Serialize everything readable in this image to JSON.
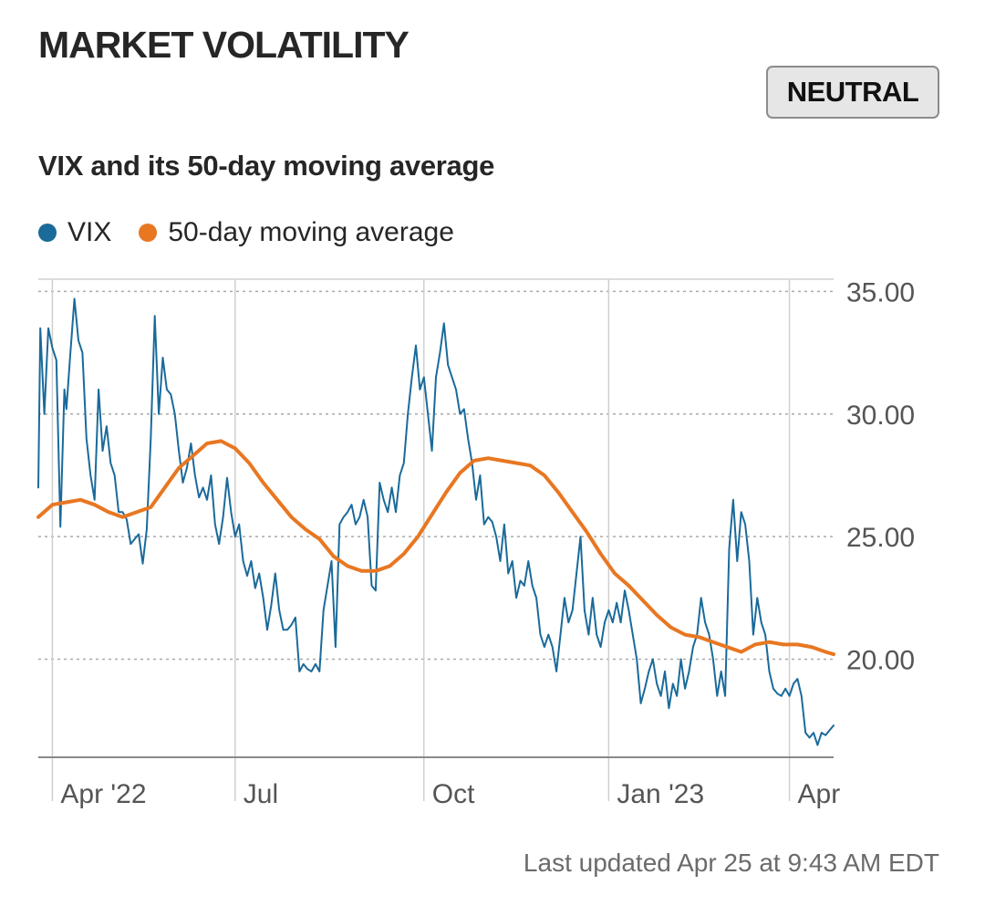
{
  "header": {
    "title": "MARKET VOLATILITY",
    "status_badge": "NEUTRAL"
  },
  "chart_data": {
    "type": "line",
    "title": "VIX and its 50-day moving average",
    "x_tick_labels": [
      "Apr '22",
      "Jul",
      "Oct",
      "Jan '23",
      "Apr"
    ],
    "x_tick_dates": [
      "2022-04-01",
      "2022-07-01",
      "2022-10-03",
      "2023-01-03",
      "2023-04-03"
    ],
    "x_range": [
      "2022-03-25",
      "2023-04-25"
    ],
    "y_tick_labels": [
      "35.00",
      "30.00",
      "25.00",
      "20.00"
    ],
    "ylim": [
      16.0,
      35.5
    ],
    "y_axis_side": "right",
    "grid": true,
    "legend": "top-left",
    "series": [
      {
        "name": "VIX",
        "color": "#1a6a9a",
        "points": [
          [
            "2022-03-25",
            27.0
          ],
          [
            "2022-03-26",
            33.5
          ],
          [
            "2022-03-28",
            30.0
          ],
          [
            "2022-03-30",
            33.5
          ],
          [
            "2022-04-01",
            32.7
          ],
          [
            "2022-04-03",
            32.2
          ],
          [
            "2022-04-05",
            25.4
          ],
          [
            "2022-04-07",
            31.0
          ],
          [
            "2022-04-08",
            30.2
          ],
          [
            "2022-04-10",
            32.5
          ],
          [
            "2022-04-12",
            34.7
          ],
          [
            "2022-04-14",
            33.0
          ],
          [
            "2022-04-16",
            32.5
          ],
          [
            "2022-04-18",
            29.0
          ],
          [
            "2022-04-20",
            27.5
          ],
          [
            "2022-04-22",
            26.5
          ],
          [
            "2022-04-24",
            31.0
          ],
          [
            "2022-04-26",
            28.5
          ],
          [
            "2022-04-28",
            29.5
          ],
          [
            "2022-04-30",
            28.0
          ],
          [
            "2022-05-02",
            27.5
          ],
          [
            "2022-05-04",
            26.0
          ],
          [
            "2022-05-06",
            26.0
          ],
          [
            "2022-05-08",
            25.7
          ],
          [
            "2022-05-10",
            24.7
          ],
          [
            "2022-05-12",
            24.9
          ],
          [
            "2022-05-14",
            25.1
          ],
          [
            "2022-05-16",
            23.9
          ],
          [
            "2022-05-18",
            25.3
          ],
          [
            "2022-05-20",
            29.0
          ],
          [
            "2022-05-22",
            34.0
          ],
          [
            "2022-05-24",
            30.0
          ],
          [
            "2022-05-26",
            32.3
          ],
          [
            "2022-05-28",
            31.0
          ],
          [
            "2022-05-30",
            30.8
          ],
          [
            "2022-06-01",
            30.0
          ],
          [
            "2022-06-03",
            28.5
          ],
          [
            "2022-06-05",
            27.2
          ],
          [
            "2022-06-07",
            27.8
          ],
          [
            "2022-06-09",
            28.8
          ],
          [
            "2022-06-11",
            27.5
          ],
          [
            "2022-06-13",
            26.6
          ],
          [
            "2022-06-15",
            27.0
          ],
          [
            "2022-06-17",
            26.5
          ],
          [
            "2022-06-19",
            27.5
          ],
          [
            "2022-06-21",
            25.5
          ],
          [
            "2022-06-23",
            24.7
          ],
          [
            "2022-06-25",
            25.8
          ],
          [
            "2022-06-27",
            27.4
          ],
          [
            "2022-06-29",
            26.0
          ],
          [
            "2022-07-01",
            25.0
          ],
          [
            "2022-07-03",
            25.5
          ],
          [
            "2022-07-05",
            24.0
          ],
          [
            "2022-07-07",
            23.4
          ],
          [
            "2022-07-09",
            24.0
          ],
          [
            "2022-07-11",
            22.9
          ],
          [
            "2022-07-13",
            23.5
          ],
          [
            "2022-07-15",
            22.5
          ],
          [
            "2022-07-17",
            21.2
          ],
          [
            "2022-07-19",
            22.2
          ],
          [
            "2022-07-21",
            23.5
          ],
          [
            "2022-07-23",
            22.0
          ],
          [
            "2022-07-25",
            21.2
          ],
          [
            "2022-07-27",
            21.2
          ],
          [
            "2022-07-29",
            21.4
          ],
          [
            "2022-07-31",
            21.7
          ],
          [
            "2022-08-02",
            19.5
          ],
          [
            "2022-08-04",
            19.8
          ],
          [
            "2022-08-06",
            19.6
          ],
          [
            "2022-08-08",
            19.5
          ],
          [
            "2022-08-10",
            19.8
          ],
          [
            "2022-08-12",
            19.5
          ],
          [
            "2022-08-14",
            22.0
          ],
          [
            "2022-08-16",
            23.0
          ],
          [
            "2022-08-18",
            24.0
          ],
          [
            "2022-08-20",
            20.5
          ],
          [
            "2022-08-22",
            25.5
          ],
          [
            "2022-08-24",
            25.8
          ],
          [
            "2022-08-26",
            26.0
          ],
          [
            "2022-08-28",
            26.3
          ],
          [
            "2022-08-30",
            25.5
          ],
          [
            "2022-09-01",
            25.8
          ],
          [
            "2022-09-03",
            26.5
          ],
          [
            "2022-09-05",
            25.8
          ],
          [
            "2022-09-07",
            23.0
          ],
          [
            "2022-09-09",
            22.8
          ],
          [
            "2022-09-11",
            27.2
          ],
          [
            "2022-09-13",
            26.5
          ],
          [
            "2022-09-15",
            26.0
          ],
          [
            "2022-09-17",
            27.0
          ],
          [
            "2022-09-19",
            26.0
          ],
          [
            "2022-09-21",
            27.5
          ],
          [
            "2022-09-23",
            28.0
          ],
          [
            "2022-09-25",
            30.0
          ],
          [
            "2022-09-27",
            31.5
          ],
          [
            "2022-09-29",
            32.8
          ],
          [
            "2022-10-01",
            31.0
          ],
          [
            "2022-10-03",
            31.5
          ],
          [
            "2022-10-05",
            30.0
          ],
          [
            "2022-10-07",
            28.5
          ],
          [
            "2022-10-09",
            31.5
          ],
          [
            "2022-10-11",
            32.5
          ],
          [
            "2022-10-13",
            33.7
          ],
          [
            "2022-10-15",
            32.0
          ],
          [
            "2022-10-17",
            31.5
          ],
          [
            "2022-10-19",
            31.0
          ],
          [
            "2022-10-21",
            30.0
          ],
          [
            "2022-10-23",
            30.2
          ],
          [
            "2022-10-25",
            29.0
          ],
          [
            "2022-10-27",
            28.0
          ],
          [
            "2022-10-29",
            26.5
          ],
          [
            "2022-10-31",
            27.5
          ],
          [
            "2022-11-02",
            25.5
          ],
          [
            "2022-11-04",
            25.8
          ],
          [
            "2022-11-06",
            25.6
          ],
          [
            "2022-11-08",
            25.0
          ],
          [
            "2022-11-10",
            24.0
          ],
          [
            "2022-11-12",
            25.5
          ],
          [
            "2022-11-14",
            23.5
          ],
          [
            "2022-11-16",
            24.0
          ],
          [
            "2022-11-18",
            22.5
          ],
          [
            "2022-11-20",
            23.2
          ],
          [
            "2022-11-22",
            23.0
          ],
          [
            "2022-11-24",
            24.0
          ],
          [
            "2022-11-26",
            23.0
          ],
          [
            "2022-11-28",
            22.5
          ],
          [
            "2022-11-30",
            21.0
          ],
          [
            "2022-12-02",
            20.5
          ],
          [
            "2022-12-04",
            21.0
          ],
          [
            "2022-12-06",
            20.5
          ],
          [
            "2022-12-08",
            19.5
          ],
          [
            "2022-12-10",
            21.0
          ],
          [
            "2022-12-12",
            22.5
          ],
          [
            "2022-12-14",
            21.5
          ],
          [
            "2022-12-16",
            22.0
          ],
          [
            "2022-12-18",
            23.5
          ],
          [
            "2022-12-20",
            25.0
          ],
          [
            "2022-12-22",
            22.0
          ],
          [
            "2022-12-24",
            21.0
          ],
          [
            "2022-12-26",
            22.5
          ],
          [
            "2022-12-28",
            21.0
          ],
          [
            "2022-12-30",
            20.5
          ],
          [
            "2023-01-01",
            21.5
          ],
          [
            "2023-01-03",
            22.0
          ],
          [
            "2023-01-05",
            21.5
          ],
          [
            "2023-01-07",
            22.3
          ],
          [
            "2023-01-09",
            21.5
          ],
          [
            "2023-01-11",
            22.8
          ],
          [
            "2023-01-13",
            22.0
          ],
          [
            "2023-01-15",
            21.0
          ],
          [
            "2023-01-17",
            20.0
          ],
          [
            "2023-01-19",
            18.2
          ],
          [
            "2023-01-21",
            18.8
          ],
          [
            "2023-01-23",
            19.5
          ],
          [
            "2023-01-25",
            20.0
          ],
          [
            "2023-01-27",
            19.0
          ],
          [
            "2023-01-29",
            18.5
          ],
          [
            "2023-01-31",
            19.5
          ],
          [
            "2023-02-02",
            18.0
          ],
          [
            "2023-02-04",
            19.0
          ],
          [
            "2023-02-06",
            18.5
          ],
          [
            "2023-02-08",
            20.0
          ],
          [
            "2023-02-10",
            18.8
          ],
          [
            "2023-02-12",
            19.5
          ],
          [
            "2023-02-14",
            20.5
          ],
          [
            "2023-02-16",
            21.0
          ],
          [
            "2023-02-18",
            22.5
          ],
          [
            "2023-02-20",
            21.5
          ],
          [
            "2023-02-22",
            21.0
          ],
          [
            "2023-02-24",
            20.0
          ],
          [
            "2023-02-26",
            18.5
          ],
          [
            "2023-02-28",
            19.5
          ],
          [
            "2023-03-02",
            18.5
          ],
          [
            "2023-03-04",
            24.5
          ],
          [
            "2023-03-06",
            26.5
          ],
          [
            "2023-03-08",
            24.0
          ],
          [
            "2023-03-10",
            26.0
          ],
          [
            "2023-03-12",
            25.5
          ],
          [
            "2023-03-14",
            24.0
          ],
          [
            "2023-03-16",
            21.0
          ],
          [
            "2023-03-18",
            22.5
          ],
          [
            "2023-03-20",
            21.5
          ],
          [
            "2023-03-22",
            21.0
          ],
          [
            "2023-03-24",
            19.5
          ],
          [
            "2023-03-26",
            18.8
          ],
          [
            "2023-03-28",
            18.6
          ],
          [
            "2023-03-30",
            18.5
          ],
          [
            "2023-04-01",
            18.8
          ],
          [
            "2023-04-03",
            18.5
          ],
          [
            "2023-04-05",
            19.0
          ],
          [
            "2023-04-07",
            19.2
          ],
          [
            "2023-04-09",
            18.5
          ],
          [
            "2023-04-11",
            17.0
          ],
          [
            "2023-04-13",
            16.8
          ],
          [
            "2023-04-15",
            17.0
          ],
          [
            "2023-04-17",
            16.5
          ],
          [
            "2023-04-19",
            17.0
          ],
          [
            "2023-04-21",
            16.9
          ],
          [
            "2023-04-23",
            17.1
          ],
          [
            "2023-04-25",
            17.3
          ]
        ]
      },
      {
        "name": "50-day moving average",
        "color": "#e87722",
        "points": [
          [
            "2022-03-25",
            25.8
          ],
          [
            "2022-04-01",
            26.3
          ],
          [
            "2022-04-08",
            26.4
          ],
          [
            "2022-04-15",
            26.5
          ],
          [
            "2022-04-22",
            26.3
          ],
          [
            "2022-04-29",
            26.0
          ],
          [
            "2022-05-06",
            25.8
          ],
          [
            "2022-05-13",
            26.0
          ],
          [
            "2022-05-20",
            26.2
          ],
          [
            "2022-05-27",
            27.0
          ],
          [
            "2022-06-03",
            27.8
          ],
          [
            "2022-06-10",
            28.3
          ],
          [
            "2022-06-17",
            28.8
          ],
          [
            "2022-06-24",
            28.9
          ],
          [
            "2022-07-01",
            28.6
          ],
          [
            "2022-07-08",
            28.0
          ],
          [
            "2022-07-15",
            27.2
          ],
          [
            "2022-07-22",
            26.5
          ],
          [
            "2022-07-29",
            25.8
          ],
          [
            "2022-08-05",
            25.3
          ],
          [
            "2022-08-12",
            24.9
          ],
          [
            "2022-08-19",
            24.2
          ],
          [
            "2022-08-26",
            23.8
          ],
          [
            "2022-09-02",
            23.6
          ],
          [
            "2022-09-09",
            23.6
          ],
          [
            "2022-09-16",
            23.8
          ],
          [
            "2022-09-23",
            24.3
          ],
          [
            "2022-09-30",
            25.0
          ],
          [
            "2022-10-07",
            25.9
          ],
          [
            "2022-10-14",
            26.8
          ],
          [
            "2022-10-21",
            27.6
          ],
          [
            "2022-10-28",
            28.1
          ],
          [
            "2022-11-04",
            28.2
          ],
          [
            "2022-11-11",
            28.1
          ],
          [
            "2022-11-18",
            28.0
          ],
          [
            "2022-11-25",
            27.9
          ],
          [
            "2022-12-02",
            27.5
          ],
          [
            "2022-12-09",
            26.8
          ],
          [
            "2022-12-16",
            26.0
          ],
          [
            "2022-12-23",
            25.2
          ],
          [
            "2022-12-30",
            24.3
          ],
          [
            "2023-01-06",
            23.5
          ],
          [
            "2023-01-13",
            23.0
          ],
          [
            "2023-01-20",
            22.4
          ],
          [
            "2023-01-27",
            21.8
          ],
          [
            "2023-02-03",
            21.3
          ],
          [
            "2023-02-10",
            21.0
          ],
          [
            "2023-02-17",
            20.9
          ],
          [
            "2023-02-24",
            20.7
          ],
          [
            "2023-03-03",
            20.5
          ],
          [
            "2023-03-10",
            20.3
          ],
          [
            "2023-03-17",
            20.6
          ],
          [
            "2023-03-24",
            20.7
          ],
          [
            "2023-03-31",
            20.6
          ],
          [
            "2023-04-07",
            20.6
          ],
          [
            "2023-04-14",
            20.5
          ],
          [
            "2023-04-21",
            20.3
          ],
          [
            "2023-04-25",
            20.2
          ]
        ]
      }
    ]
  },
  "footer": {
    "last_updated": "Last updated Apr 25 at 9:43 AM EDT"
  }
}
